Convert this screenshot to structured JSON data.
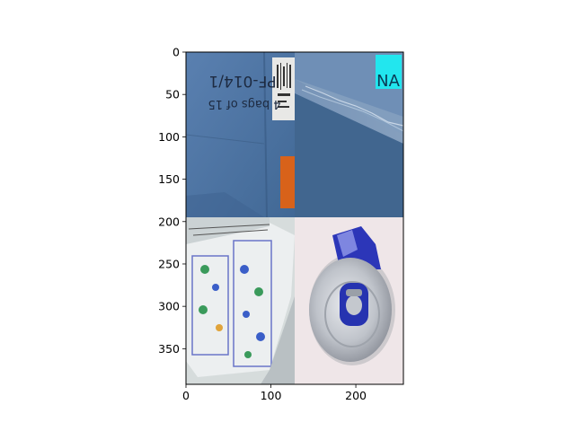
{
  "figure": {
    "panels": [
      {
        "id": "cardboard-box-side",
        "printed_text": [
          "PF-014/1",
          "4 bags of 15"
        ]
      },
      {
        "id": "cardboard-box-edge",
        "printed_text": [
          "NA"
        ]
      },
      {
        "id": "crumpled-printed-paper",
        "printed_text": []
      },
      {
        "id": "crushed-soda-can",
        "printed_text": []
      }
    ],
    "colors": {
      "cardboard_blue": "#4f76a8",
      "cardboard_dark": "#3f628f",
      "orange_tape": "#d8621a",
      "cyan_badge": "#22e6ee",
      "paper_white": "#e9ecec",
      "can_blue": "#2c36b8",
      "can_silver": "#c9ccd2",
      "background_pink": "#efe6e8"
    }
  },
  "chart_data": {
    "type": "image",
    "x_ticks": [
      0,
      100,
      200
    ],
    "y_ticks": [
      0,
      50,
      100,
      150,
      200,
      250,
      300,
      350
    ],
    "xlim": [
      0,
      256
    ],
    "ylim": [
      392,
      0
    ]
  }
}
